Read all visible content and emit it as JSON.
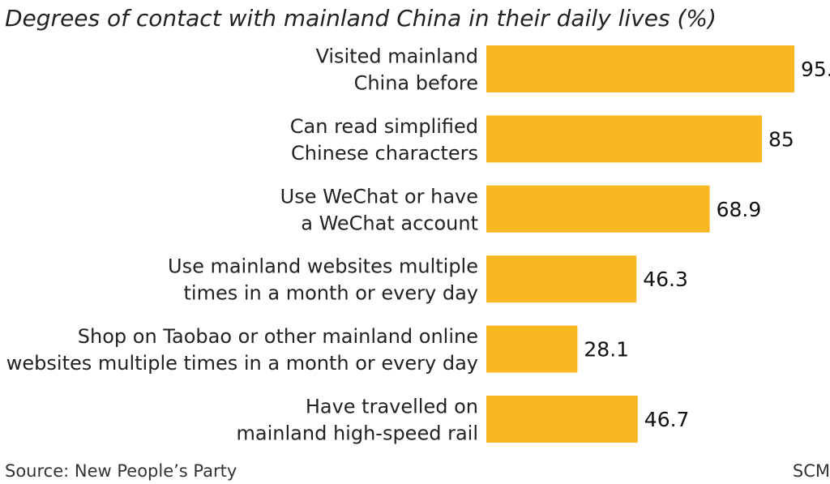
{
  "chart_data": {
    "type": "bar",
    "orientation": "horizontal",
    "title": "Degrees of contact with mainland China in their daily lives (%)",
    "categories": [
      "Visited mainland\nChina before",
      "Can read simplified\nChinese characters",
      "Use WeChat or have\na WeChat account",
      "Use mainland websites multiple\ntimes in a month or every day",
      "Shop on Taobao or other mainland online\nwebsites multiple times in a month or every day",
      "Have travelled on\nmainland high-speed rail"
    ],
    "values": [
      95,
      85,
      68.9,
      46.3,
      28.1,
      46.7
    ],
    "value_labels": [
      "95.",
      "85",
      "68.9",
      "46.3",
      "28.1",
      "46.7"
    ],
    "color": "#f9b822",
    "source": "Source: New People’s Party",
    "credit": "SCM"
  }
}
